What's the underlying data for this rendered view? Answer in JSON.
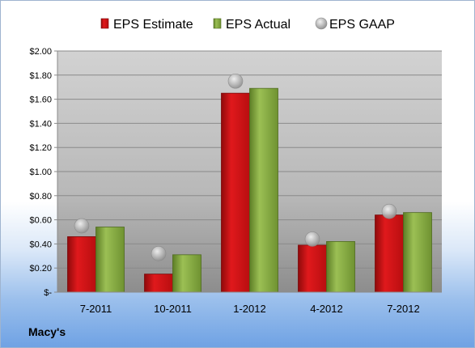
{
  "chart_data": {
    "type": "bar",
    "categories": [
      "7-2011",
      "10-2011",
      "1-2012",
      "4-2012",
      "7-2012"
    ],
    "series": [
      {
        "name": "EPS Estimate",
        "kind": "bar",
        "color": "#cc0f12",
        "values": [
          0.46,
          0.15,
          1.65,
          0.39,
          0.64
        ]
      },
      {
        "name": "EPS Actual",
        "kind": "bar",
        "color": "#7ea33c",
        "values": [
          0.54,
          0.31,
          1.69,
          0.42,
          0.66
        ]
      },
      {
        "name": "EPS GAAP",
        "kind": "marker",
        "color": "#b4b4b4",
        "values": [
          0.55,
          0.32,
          1.75,
          0.44,
          0.67
        ]
      }
    ],
    "yticks": [
      "$2.00",
      "$1.80",
      "$1.60",
      "$1.40",
      "$1.20",
      "$1.00",
      "$0.80",
      "$0.60",
      "$0.40",
      "$0.20",
      "$-"
    ],
    "ylim": [
      0,
      2.0
    ],
    "grid": true,
    "legend_position": "top-center"
  },
  "footer": {
    "label": "Macy's"
  }
}
